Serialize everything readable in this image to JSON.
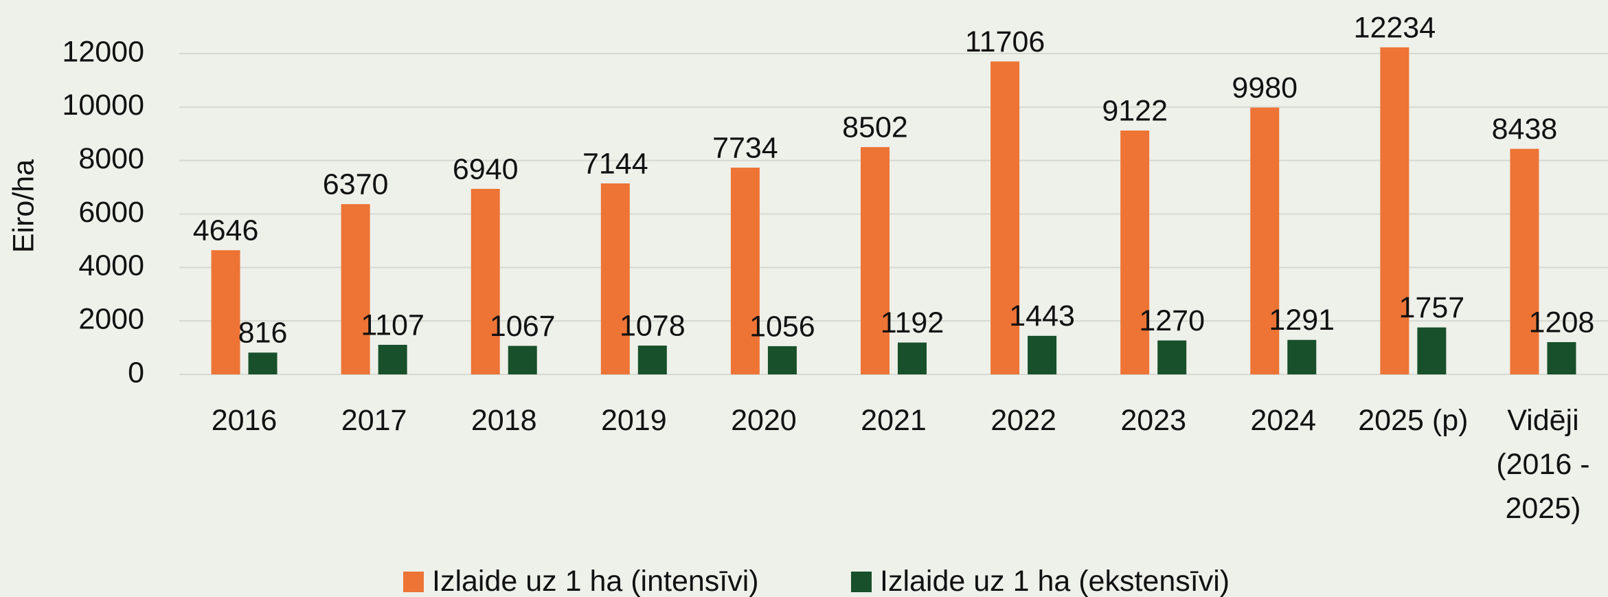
{
  "chart_data": {
    "type": "bar",
    "y_label": "Eiro/ha",
    "categories": [
      "2016",
      "2017",
      "2018",
      "2019",
      "2020",
      "2021",
      "2022",
      "2023",
      "2024",
      "2025 (p)",
      "Vidēji (2016 - 2025)"
    ],
    "series": [
      {
        "name": "Izlaide uz 1 ha (intensīvi)",
        "color": "#ed7435",
        "values": [
          4646,
          6370,
          6940,
          7144,
          7734,
          8502,
          11706,
          9122,
          9980,
          12234,
          8438
        ]
      },
      {
        "name": "Izlaide uz 1 ha (ekstensīvi)",
        "color": "#17502a",
        "values": [
          816,
          1107,
          1067,
          1078,
          1056,
          1192,
          1443,
          1270,
          1291,
          1757,
          1208
        ]
      }
    ],
    "ylim": [
      0,
      12000
    ],
    "yticks": [
      0,
      2000,
      4000,
      6000,
      8000,
      10000,
      12000
    ],
    "grid": true,
    "legend": "bottom"
  }
}
